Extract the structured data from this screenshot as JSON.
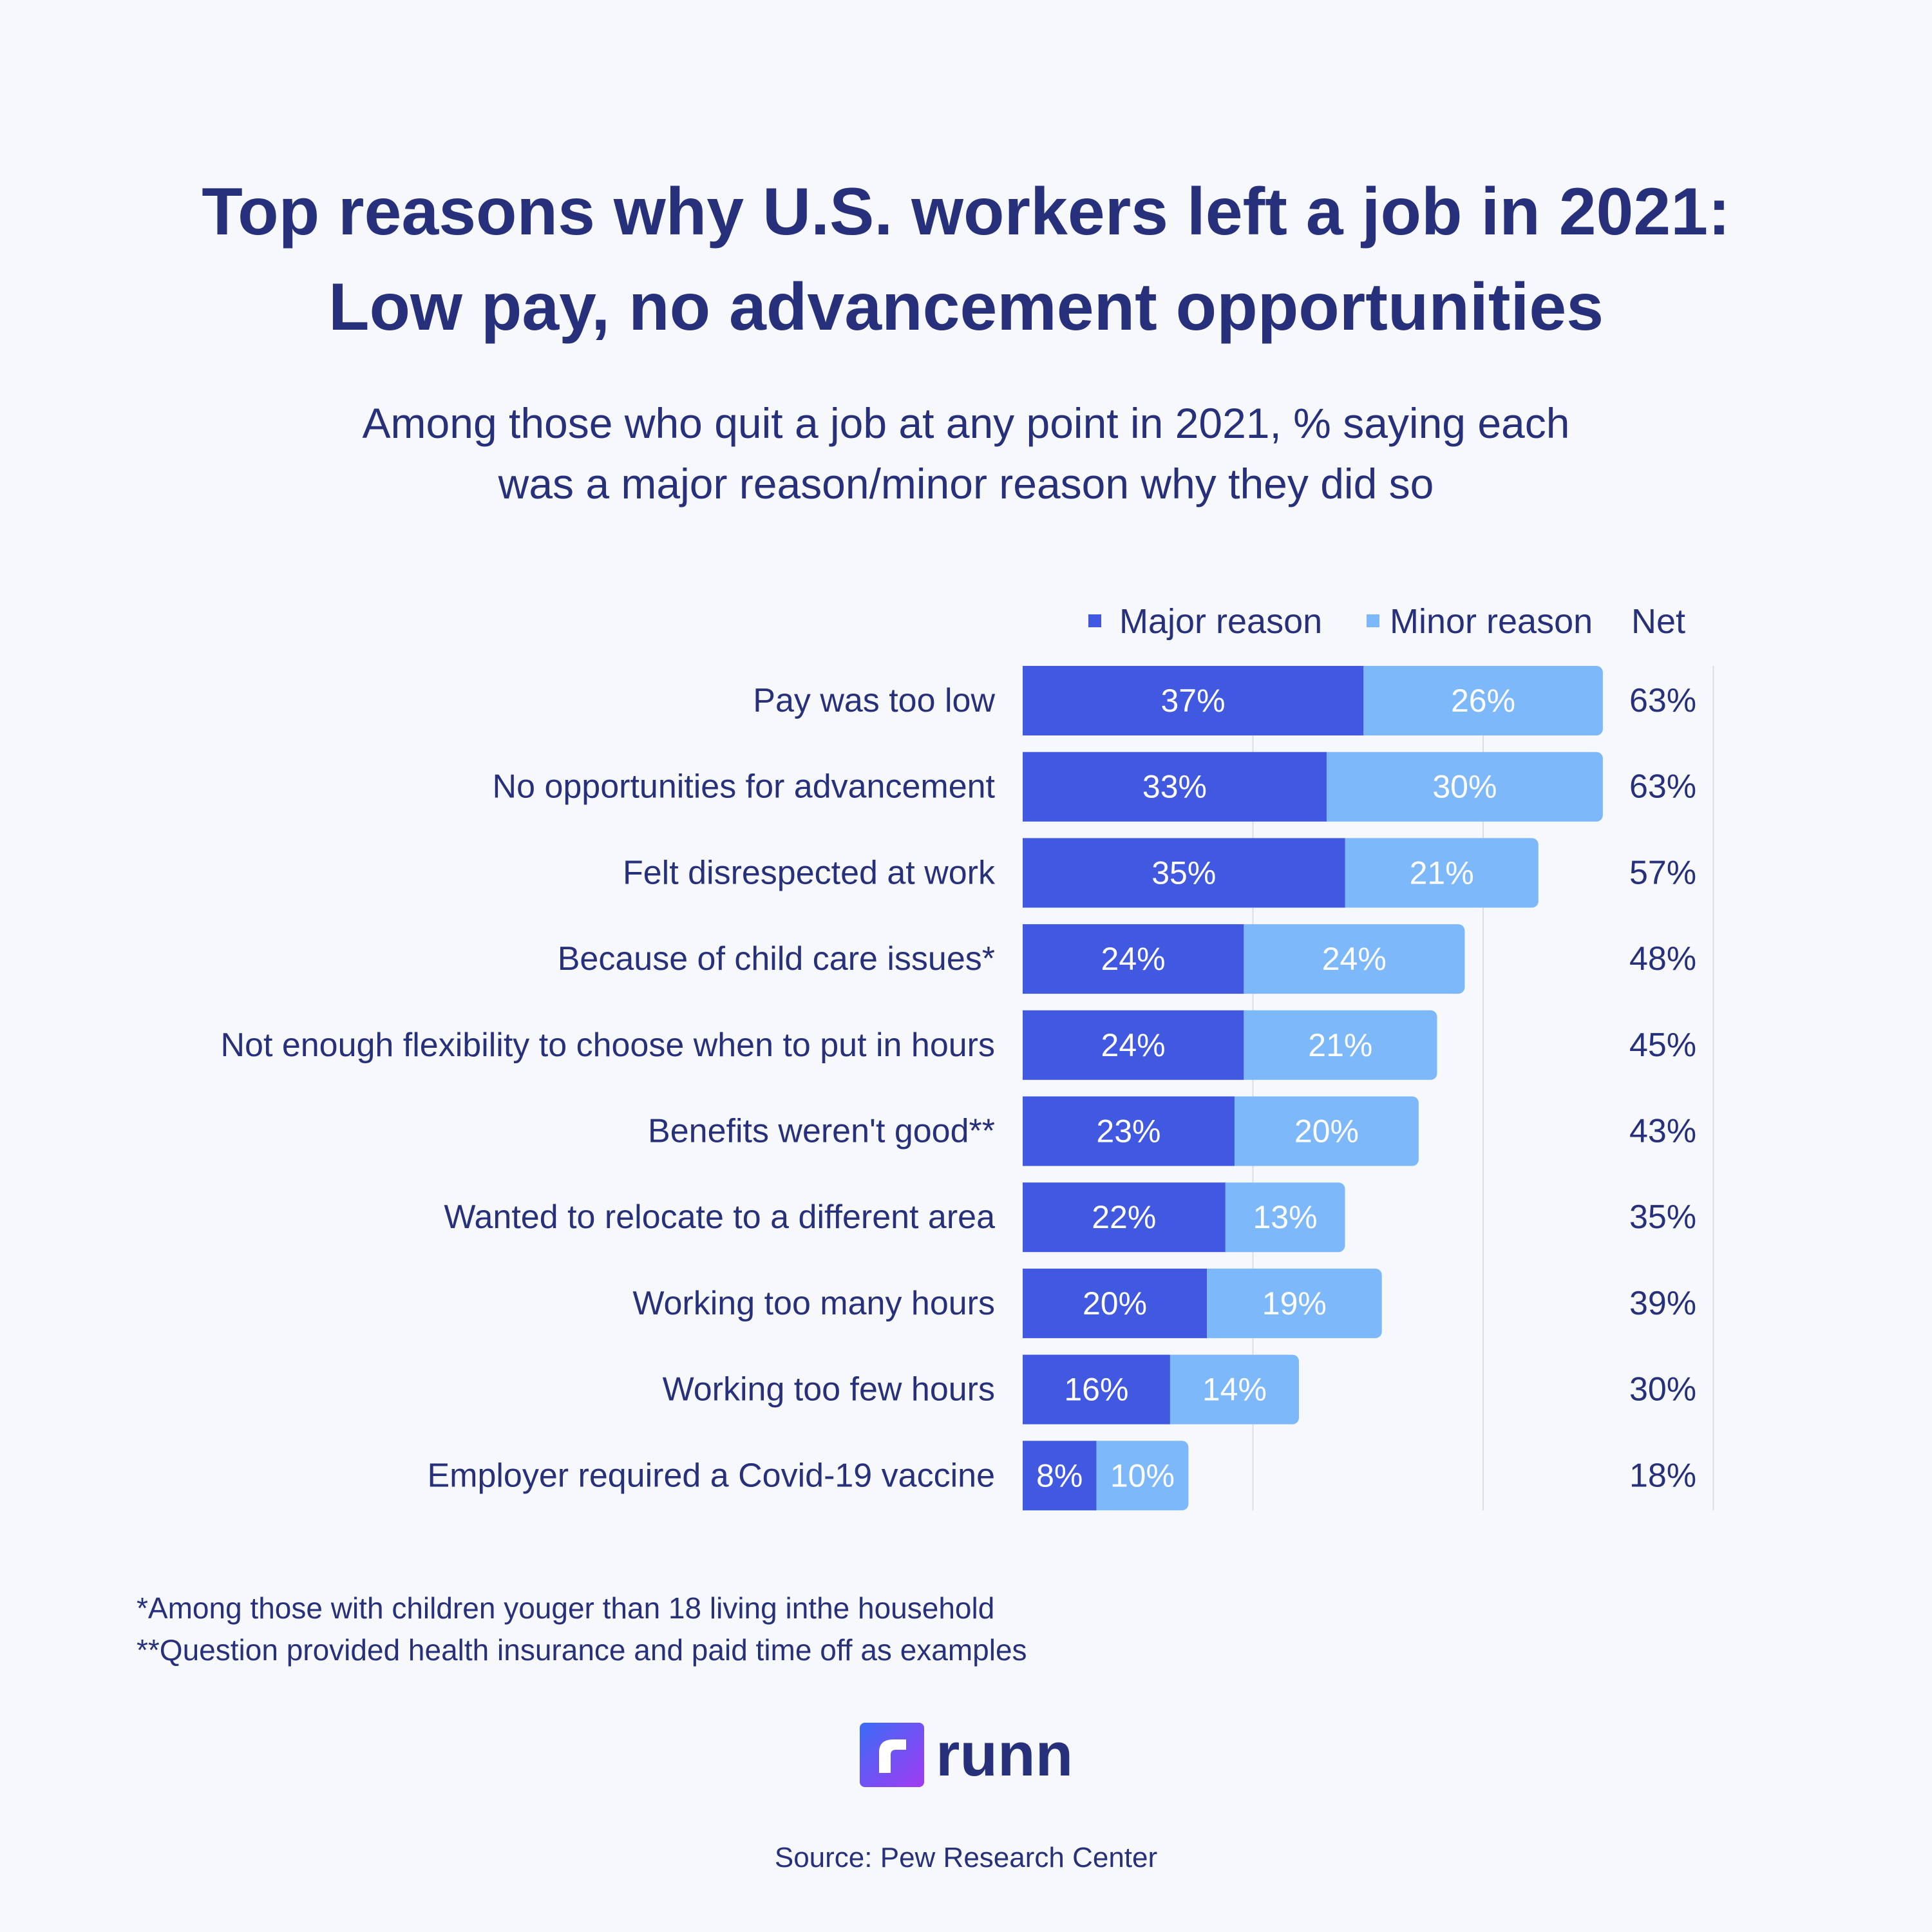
{
  "colors": {
    "major": "#4158e0",
    "minor": "#7db8fb",
    "text": "#27307a",
    "grid": "#dcdde6",
    "label_on_bar": "#ffffff"
  },
  "title_line1": "Top reasons why U.S. workers left a job in 2021:",
  "title_line2": "Low pay, no advancement opportunities",
  "subtitle_line1": "Among those who quit a job at any point in 2021, % saying each",
  "subtitle_line2": "was a major reason/minor reason why they did so",
  "chart_data": {
    "type": "bar",
    "orientation": "horizontal",
    "stacked": true,
    "categories": [
      "Pay was too low",
      "No opportunities for advancement",
      "Felt disrespected at work",
      "Because of child care issues*",
      "Not enough flexibility to choose when to put in hours",
      "Benefits weren't good**",
      "Wanted to relocate to a different area",
      "Working too many hours",
      "Working too few hours",
      "Employer required a Covid-19 vaccine"
    ],
    "series": [
      {
        "name": "Major reason",
        "values": [
          37,
          33,
          35,
          24,
          24,
          23,
          22,
          20,
          16,
          8
        ]
      },
      {
        "name": "Minor reason",
        "values": [
          26,
          30,
          21,
          24,
          21,
          20,
          13,
          19,
          14,
          10
        ]
      }
    ],
    "net_header": "Net",
    "net_values": [
      63,
      63,
      57,
      48,
      45,
      43,
      35,
      39,
      30,
      18
    ],
    "value_suffix": "%",
    "xlim": [
      0,
      75
    ],
    "grid": true
  },
  "legend": {
    "major_label": "Major reason",
    "minor_label": "Minor reason",
    "net_label": "Net"
  },
  "footnotes": [
    "*Among those with children youger than 18 living inthe household",
    "**Question provided health insurance and paid time off as examples"
  ],
  "logo_text": "runn",
  "source": "Source: Pew Research Center"
}
